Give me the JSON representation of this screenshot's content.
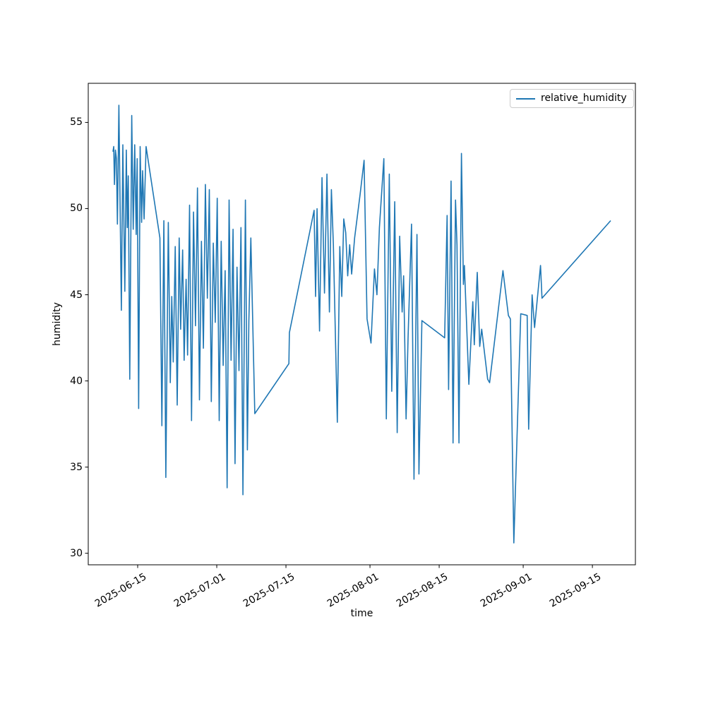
{
  "figure": {
    "background": "#ffffff",
    "spine_color": "#000000",
    "tick_color": "#000000"
  },
  "axes": {
    "xlabel": "time",
    "ylabel": "humidity"
  },
  "legend": {
    "label": "relative_humidity",
    "line_color": "#1f77b4"
  },
  "chart_data": {
    "type": "line",
    "title": "",
    "xlabel": "time",
    "ylabel": "humidity",
    "legend_position": "upper right",
    "grid": false,
    "x_unit": "days since 2025-06-10",
    "x_start_date": "2025-06-10",
    "xlim_days": [
      -5.0,
      105.7
    ],
    "ylim": [
      29.33,
      57.27
    ],
    "x_ticks": [
      {
        "day": 5,
        "label": "2025-06-15"
      },
      {
        "day": 21,
        "label": "2025-07-01"
      },
      {
        "day": 35,
        "label": "2025-07-15"
      },
      {
        "day": 52,
        "label": "2025-08-01"
      },
      {
        "day": 66,
        "label": "2025-08-15"
      },
      {
        "day": 83,
        "label": "2025-09-01"
      },
      {
        "day": 97,
        "label": "2025-09-15"
      }
    ],
    "y_ticks": [
      30,
      35,
      40,
      45,
      50,
      55
    ],
    "series": [
      {
        "name": "relative_humidity",
        "color": "#1f77b4",
        "points": [
          [
            0,
            53.3
          ],
          [
            0.15,
            53.6
          ],
          [
            0.3,
            51.4
          ],
          [
            0.5,
            53.4
          ],
          [
            0.7,
            52.9
          ],
          [
            0.9,
            49.1
          ],
          [
            1.2,
            56.0
          ],
          [
            1.7,
            44.1
          ],
          [
            2.0,
            53.7
          ],
          [
            2.4,
            45.2
          ],
          [
            2.7,
            53.4
          ],
          [
            2.9,
            48.9
          ],
          [
            3.1,
            51.9
          ],
          [
            3.4,
            40.1
          ],
          [
            3.8,
            55.4
          ],
          [
            4.1,
            48.8
          ],
          [
            4.4,
            53.7
          ],
          [
            4.7,
            48.5
          ],
          [
            4.9,
            52.9
          ],
          [
            5.2,
            38.4
          ],
          [
            5.5,
            53.6
          ],
          [
            5.8,
            49.2
          ],
          [
            6.0,
            52.2
          ],
          [
            6.3,
            49.4
          ],
          [
            6.7,
            53.6
          ],
          [
            9.5,
            48.3
          ],
          [
            9.9,
            37.4
          ],
          [
            10.3,
            49.3
          ],
          [
            10.7,
            34.4
          ],
          [
            11.2,
            49.2
          ],
          [
            11.6,
            39.9
          ],
          [
            11.9,
            44.9
          ],
          [
            12.2,
            41.1
          ],
          [
            12.6,
            47.8
          ],
          [
            13.0,
            38.6
          ],
          [
            13.4,
            48.3
          ],
          [
            13.7,
            43.0
          ],
          [
            14.1,
            47.6
          ],
          [
            14.4,
            41.2
          ],
          [
            14.8,
            45.9
          ],
          [
            15.1,
            41.5
          ],
          [
            15.5,
            50.2
          ],
          [
            15.9,
            37.7
          ],
          [
            16.3,
            49.8
          ],
          [
            16.7,
            43.2
          ],
          [
            17.1,
            51.2
          ],
          [
            17.5,
            38.9
          ],
          [
            17.9,
            48.1
          ],
          [
            18.3,
            41.9
          ],
          [
            18.7,
            51.4
          ],
          [
            19.1,
            44.8
          ],
          [
            19.5,
            51.1
          ],
          [
            19.9,
            38.8
          ],
          [
            20.3,
            48.0
          ],
          [
            20.7,
            43.4
          ],
          [
            21.1,
            50.6
          ],
          [
            21.5,
            37.7
          ],
          [
            21.9,
            48.1
          ],
          [
            22.3,
            40.9
          ],
          [
            22.7,
            46.4
          ],
          [
            23.1,
            33.8
          ],
          [
            23.5,
            50.5
          ],
          [
            23.9,
            41.2
          ],
          [
            24.3,
            48.8
          ],
          [
            24.7,
            35.2
          ],
          [
            25.1,
            46.6
          ],
          [
            25.5,
            40.6
          ],
          [
            25.9,
            48.9
          ],
          [
            26.3,
            33.4
          ],
          [
            26.8,
            50.5
          ],
          [
            27.2,
            36.0
          ],
          [
            27.5,
            43.5
          ],
          [
            27.9,
            48.3
          ],
          [
            28.7,
            38.1
          ],
          [
            35.6,
            41.0
          ],
          [
            35.7,
            42.8
          ],
          [
            40.7,
            49.9
          ],
          [
            41.0,
            44.9
          ],
          [
            41.3,
            50.0
          ],
          [
            41.8,
            42.9
          ],
          [
            42.3,
            51.8
          ],
          [
            42.8,
            45.1
          ],
          [
            43.3,
            52.0
          ],
          [
            43.8,
            44.0
          ],
          [
            44.2,
            51.1
          ],
          [
            44.6,
            47.9
          ],
          [
            45.4,
            37.6
          ],
          [
            45.9,
            47.8
          ],
          [
            46.3,
            44.9
          ],
          [
            46.7,
            49.4
          ],
          [
            47.1,
            48.6
          ],
          [
            47.5,
            46.1
          ],
          [
            47.9,
            47.9
          ],
          [
            48.3,
            46.2
          ],
          [
            48.9,
            48.3
          ],
          [
            50.0,
            50.8
          ],
          [
            50.8,
            52.8
          ],
          [
            51.4,
            43.6
          ],
          [
            52.2,
            42.2
          ],
          [
            52.9,
            46.5
          ],
          [
            53.4,
            45.0
          ],
          [
            53.9,
            48.9
          ],
          [
            54.8,
            52.9
          ],
          [
            55.3,
            37.8
          ],
          [
            55.9,
            52.0
          ],
          [
            56.4,
            39.4
          ],
          [
            57.0,
            50.4
          ],
          [
            57.5,
            37.0
          ],
          [
            58.0,
            48.4
          ],
          [
            58.5,
            44.0
          ],
          [
            58.8,
            46.1
          ],
          [
            59.3,
            37.8
          ],
          [
            59.7,
            42.5
          ],
          [
            60.4,
            49.1
          ],
          [
            60.9,
            34.3
          ],
          [
            61.5,
            48.5
          ],
          [
            61.9,
            34.6
          ],
          [
            62.5,
            43.5
          ],
          [
            67.1,
            42.5
          ],
          [
            67.6,
            49.6
          ],
          [
            67.9,
            39.5
          ],
          [
            68.4,
            51.6
          ],
          [
            68.8,
            36.4
          ],
          [
            69.3,
            50.5
          ],
          [
            69.6,
            47.9
          ],
          [
            70.0,
            36.4
          ],
          [
            70.5,
            53.2
          ],
          [
            70.9,
            45.6
          ],
          [
            71.1,
            46.7
          ],
          [
            72.0,
            39.8
          ],
          [
            72.8,
            44.6
          ],
          [
            73.1,
            42.1
          ],
          [
            73.7,
            46.3
          ],
          [
            74.2,
            42.0
          ],
          [
            74.6,
            43.0
          ],
          [
            75.8,
            40.1
          ],
          [
            76.2,
            39.9
          ],
          [
            78.9,
            46.4
          ],
          [
            80.0,
            43.8
          ],
          [
            80.4,
            43.6
          ],
          [
            81.1,
            30.6
          ],
          [
            82.5,
            43.9
          ],
          [
            83.8,
            43.8
          ],
          [
            84.1,
            37.2
          ],
          [
            84.8,
            45.0
          ],
          [
            85.3,
            43.1
          ],
          [
            86.5,
            46.7
          ],
          [
            86.8,
            44.8
          ],
          [
            100.7,
            49.3
          ]
        ]
      }
    ]
  }
}
